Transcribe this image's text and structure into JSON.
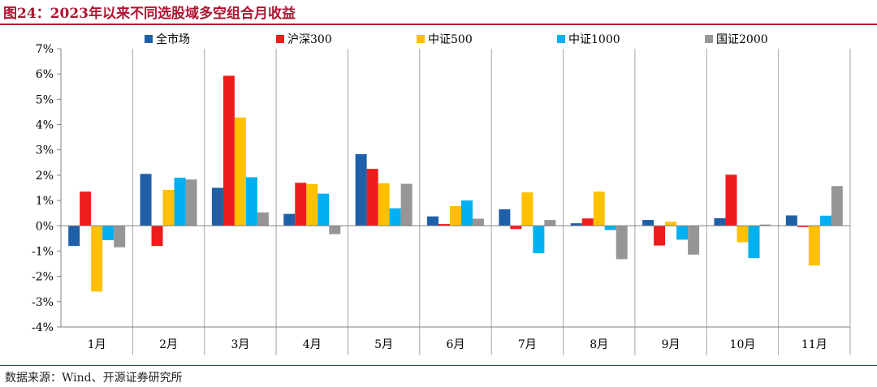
{
  "figure": {
    "title": "图24：2023年以来不同选股域多空组合月收益",
    "source": "数据来源：Wind、开源证券研究所"
  },
  "chart_data": {
    "type": "bar",
    "categories": [
      "1月",
      "2月",
      "3月",
      "4月",
      "5月",
      "6月",
      "7月",
      "8月",
      "9月",
      "10月",
      "11月"
    ],
    "series": [
      {
        "name": "全市场",
        "color": "#1f5fa8",
        "values": [
          -0.8,
          2.05,
          1.5,
          0.47,
          2.83,
          0.37,
          0.65,
          0.1,
          0.23,
          0.3,
          0.41
        ]
      },
      {
        "name": "沪深300",
        "color": "#ee1c1c",
        "values": [
          1.35,
          -0.8,
          5.93,
          1.7,
          2.25,
          0.07,
          -0.13,
          0.29,
          -0.78,
          2.02,
          -0.05
        ]
      },
      {
        "name": "中证500",
        "color": "#ffc000",
        "values": [
          -2.6,
          1.42,
          4.28,
          1.65,
          1.68,
          0.78,
          1.32,
          1.35,
          0.16,
          -0.65,
          -1.57
        ]
      },
      {
        "name": "中证1000",
        "color": "#00b0f0",
        "values": [
          -0.57,
          1.9,
          1.92,
          1.27,
          0.69,
          1.0,
          -1.08,
          -0.17,
          -0.55,
          -1.28,
          0.4
        ]
      },
      {
        "name": "国证2000",
        "color": "#969696",
        "values": [
          -0.85,
          1.83,
          0.53,
          -0.33,
          1.66,
          0.28,
          0.23,
          -1.32,
          -1.14,
          0.05,
          1.57
        ]
      }
    ],
    "ylim": [
      -4,
      7
    ],
    "yticks": [
      "-4%",
      "-3%",
      "-2%",
      "-1%",
      "0%",
      "1%",
      "2%",
      "3%",
      "4%",
      "5%",
      "6%",
      "7%"
    ],
    "grid": "vertical separators between months",
    "legend": "top"
  }
}
